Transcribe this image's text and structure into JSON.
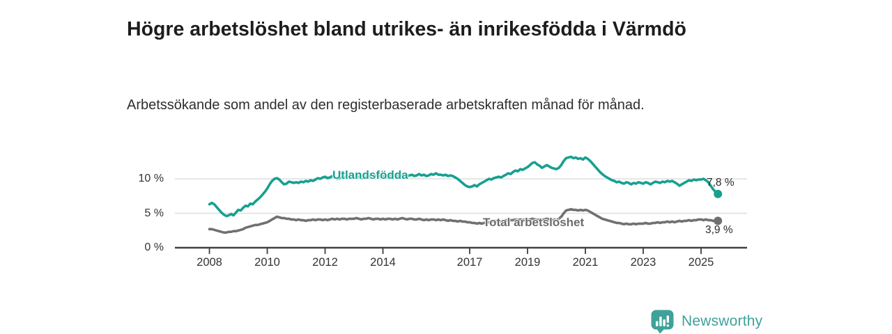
{
  "header": {
    "title": "Högre arbetslöshet bland utrikes- än inrikesfödda i Värmdö",
    "subtitle": "Arbetssökande som andel av den registerbaserade arbetskraften månad för månad."
  },
  "footer": {
    "brand": "Newsworthy",
    "logo_icon": "speech-bubble-bar-chart"
  },
  "colors": {
    "accent_teal": "#16a091",
    "series_gray": "#707070",
    "series_gray_label": "#6b6b6b",
    "logo_teal": "#3ea29a",
    "grid": "#dedede",
    "axis": "#3f3f3f",
    "tick_text": "#333333",
    "title_text": "#1d1d1d"
  },
  "chart_data": {
    "type": "line",
    "title": "Högre arbetslöshet bland utrikes- än inrikesfödda i Värmdö",
    "subtitle": "Arbetssökande som andel av den registerbaserade arbetskraften månad för månad.",
    "xlabel": "",
    "ylabel": "",
    "x_start_year": 2008,
    "x_start_month": 1,
    "x_end_year": 2025,
    "x_end_month": 8,
    "x_frequency": "monthly",
    "x_ticks": [
      2008,
      2010,
      2012,
      2014,
      2017,
      2019,
      2021,
      2023,
      2025
    ],
    "y_ticks": [
      {
        "value": 0,
        "label": "0 %"
      },
      {
        "value": 5,
        "label": "5 %"
      },
      {
        "value": 10,
        "label": "10 %"
      }
    ],
    "ylim": [
      0,
      14
    ],
    "grid": "horizontal",
    "legend_position": "inline-labels",
    "series": [
      {
        "name": "Utlandsfödda",
        "color": "#16a091",
        "end_label": "7,8 %",
        "end_value": 7.8,
        "values": [
          6.3,
          6.5,
          6.3,
          5.9,
          5.5,
          5.1,
          4.8,
          4.6,
          4.7,
          4.9,
          4.7,
          5.1,
          5.5,
          5.4,
          5.8,
          6.1,
          6.0,
          6.4,
          6.3,
          6.7,
          7.0,
          7.3,
          7.7,
          8.1,
          8.6,
          9.2,
          9.7,
          10.0,
          10.1,
          9.9,
          9.5,
          9.2,
          9.3,
          9.6,
          9.5,
          9.4,
          9.5,
          9.4,
          9.6,
          9.5,
          9.7,
          9.6,
          9.8,
          9.7,
          9.9,
          10.1,
          10.0,
          10.2,
          10.3,
          10.1,
          10.2,
          10.4,
          10.2,
          10.0,
          10.1,
          10.3,
          10.2,
          10.4,
          10.3,
          10.2,
          10.2,
          10.4,
          10.3,
          10.1,
          10.2,
          10.3,
          10.5,
          10.3,
          10.2,
          10.4,
          10.5,
          10.3,
          10.4,
          10.2,
          10.3,
          10.5,
          10.4,
          10.6,
          10.4,
          10.3,
          10.5,
          10.6,
          10.4,
          10.5,
          10.6,
          10.4,
          10.5,
          10.7,
          10.5,
          10.6,
          10.4,
          10.5,
          10.7,
          10.6,
          10.8,
          10.6,
          10.6,
          10.5,
          10.6,
          10.4,
          10.5,
          10.4,
          10.2,
          10.0,
          9.7,
          9.4,
          9.1,
          8.9,
          8.8,
          8.9,
          9.1,
          8.9,
          9.2,
          9.4,
          9.6,
          9.8,
          10.0,
          9.9,
          10.1,
          10.2,
          10.3,
          10.2,
          10.4,
          10.6,
          10.8,
          10.7,
          11.0,
          11.2,
          11.1,
          11.4,
          11.3,
          11.5,
          11.7,
          12.0,
          12.3,
          12.4,
          12.1,
          11.9,
          11.6,
          11.8,
          12.0,
          11.8,
          11.6,
          11.5,
          11.4,
          11.6,
          12.0,
          12.6,
          13.0,
          13.1,
          13.2,
          13.0,
          13.1,
          12.9,
          13.0,
          12.8,
          13.1,
          12.9,
          12.6,
          12.2,
          11.8,
          11.4,
          11.0,
          10.7,
          10.4,
          10.2,
          10.0,
          9.8,
          9.7,
          9.5,
          9.6,
          9.4,
          9.3,
          9.5,
          9.4,
          9.2,
          9.4,
          9.3,
          9.5,
          9.4,
          9.3,
          9.5,
          9.4,
          9.2,
          9.4,
          9.6,
          9.5,
          9.4,
          9.6,
          9.5,
          9.7,
          9.6,
          9.7,
          9.5,
          9.3,
          9.0,
          9.2,
          9.4,
          9.6,
          9.8,
          9.7,
          9.9,
          9.8,
          9.9,
          9.9,
          10.0,
          9.8,
          9.5,
          9.0,
          8.5,
          8.1,
          7.8
        ]
      },
      {
        "name": "Total arbetslöshet",
        "color": "#707070",
        "end_label": "3,9 %",
        "end_value": 3.9,
        "values": [
          2.7,
          2.7,
          2.6,
          2.5,
          2.4,
          2.3,
          2.2,
          2.2,
          2.3,
          2.3,
          2.4,
          2.4,
          2.5,
          2.6,
          2.7,
          2.9,
          3.0,
          3.1,
          3.2,
          3.3,
          3.3,
          3.4,
          3.5,
          3.6,
          3.7,
          3.9,
          4.1,
          4.3,
          4.5,
          4.4,
          4.3,
          4.3,
          4.2,
          4.2,
          4.1,
          4.1,
          4.0,
          4.1,
          4.0,
          4.0,
          3.9,
          4.0,
          4.0,
          4.1,
          4.0,
          4.1,
          4.1,
          4.0,
          4.1,
          4.0,
          4.1,
          4.2,
          4.1,
          4.2,
          4.1,
          4.2,
          4.2,
          4.1,
          4.2,
          4.2,
          4.2,
          4.3,
          4.2,
          4.1,
          4.2,
          4.2,
          4.3,
          4.2,
          4.1,
          4.2,
          4.2,
          4.1,
          4.2,
          4.1,
          4.2,
          4.2,
          4.1,
          4.2,
          4.1,
          4.2,
          4.3,
          4.2,
          4.1,
          4.2,
          4.2,
          4.1,
          4.1,
          4.2,
          4.1,
          4.0,
          4.1,
          4.0,
          4.1,
          4.1,
          4.0,
          4.1,
          4.0,
          4.1,
          4.0,
          3.9,
          4.0,
          3.9,
          3.9,
          3.8,
          3.9,
          3.8,
          3.8,
          3.7,
          3.7,
          3.6,
          3.6,
          3.5,
          3.6,
          3.5,
          3.6,
          3.7,
          3.7,
          3.8,
          3.8,
          3.9,
          3.9,
          3.8,
          3.9,
          4.0,
          3.9,
          4.0,
          4.0,
          4.1,
          4.0,
          4.1,
          4.0,
          4.1,
          4.0,
          4.1,
          4.2,
          4.1,
          4.0,
          4.1,
          4.0,
          4.1,
          4.2,
          4.1,
          4.0,
          4.1,
          4.1,
          4.2,
          4.5,
          5.0,
          5.4,
          5.5,
          5.6,
          5.5,
          5.5,
          5.4,
          5.5,
          5.4,
          5.5,
          5.4,
          5.2,
          5.0,
          4.8,
          4.6,
          4.4,
          4.2,
          4.1,
          4.0,
          3.9,
          3.8,
          3.7,
          3.6,
          3.6,
          3.5,
          3.4,
          3.5,
          3.4,
          3.4,
          3.5,
          3.4,
          3.5,
          3.5,
          3.5,
          3.6,
          3.5,
          3.5,
          3.6,
          3.6,
          3.7,
          3.6,
          3.7,
          3.7,
          3.8,
          3.7,
          3.8,
          3.7,
          3.8,
          3.9,
          3.8,
          3.9,
          3.9,
          4.0,
          3.9,
          4.0,
          4.0,
          4.1,
          4.1,
          4.0,
          4.1,
          4.0,
          4.0,
          3.9,
          3.9,
          3.9
        ]
      }
    ]
  }
}
